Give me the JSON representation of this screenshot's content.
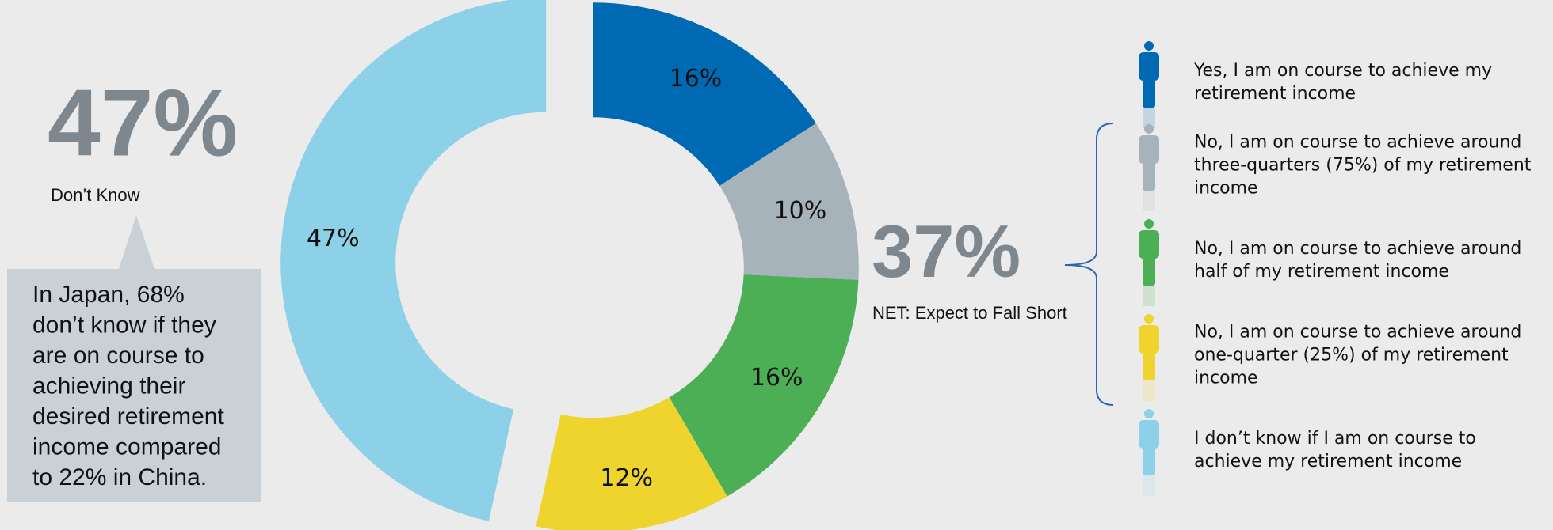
{
  "chart_data": {
    "type": "pie",
    "donut": true,
    "categories": [
      "Yes, I am on course to achieve my retirement income",
      "No, I am on course to achieve around three-quarters (75%) of my retirement income",
      "No, I am on course to achieve around half of my retirement income",
      "No, I am on course to achieve around one-quarter (25%) of my retirement income",
      "I don’t know if I am on course to achieve my retirement income"
    ],
    "values": [
      16,
      10,
      16,
      12,
      47
    ],
    "value_labels": [
      "16%",
      "10%",
      "16%",
      "12%",
      "47%"
    ],
    "colors": [
      "#0069b4",
      "#a7b3bb",
      "#4caf55",
      "#eed42c",
      "#8dd1e8"
    ],
    "annotations": {
      "dont_know_value": "47%",
      "dont_know_label": "Don’t Know",
      "note": [
        "In Japan, 68%",
        "don’t know if they",
        "are on course to",
        "achieving their",
        "desired retirement",
        "income compared",
        "to 22% in China."
      ],
      "net_value": "37%",
      "net_label": "NET: Expect to Fall Short"
    }
  }
}
